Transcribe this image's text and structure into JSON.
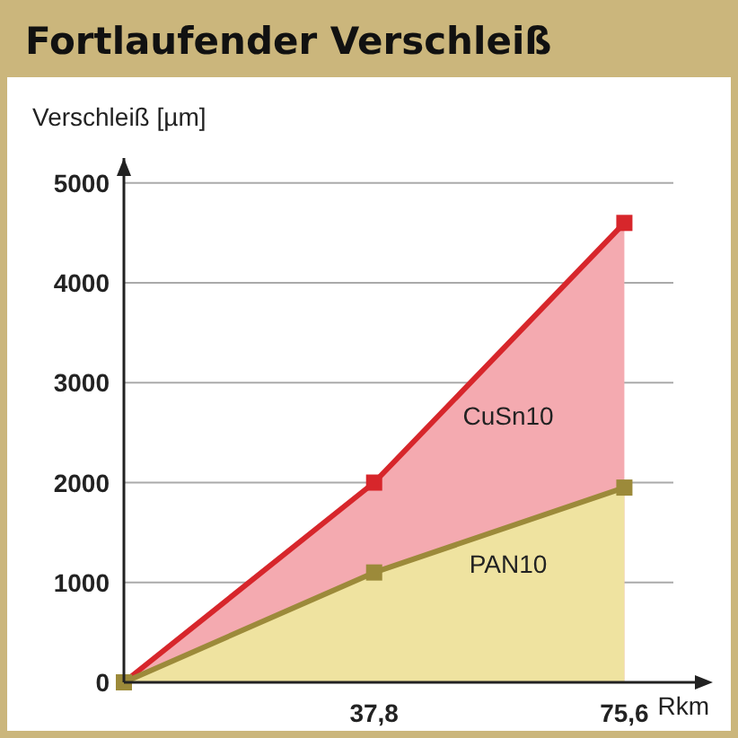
{
  "chart_data": {
    "type": "area",
    "title": "Fortlaufender Verschleiß",
    "ylabel": "Verschleiß [µm]",
    "xlabel": "Rkm",
    "x": [
      0,
      37.8,
      75.6
    ],
    "series": [
      {
        "name": "CuSn10",
        "color": "#d7262b",
        "values": [
          0,
          2000,
          4600
        ]
      },
      {
        "name": "PAN10",
        "color": "#9c8a3a",
        "values": [
          0,
          1100,
          1950
        ]
      }
    ],
    "xlim": [
      0,
      83
    ],
    "xticks": [
      {
        "value": 37.8,
        "label": "37,8"
      },
      {
        "value": 75.6,
        "label": "75,6"
      }
    ],
    "ylim": [
      0,
      5250
    ],
    "yticks": [
      0,
      1000,
      2000,
      3000,
      4000,
      5000
    ],
    "grid": "y",
    "marker": "square",
    "line_style": "solid"
  }
}
